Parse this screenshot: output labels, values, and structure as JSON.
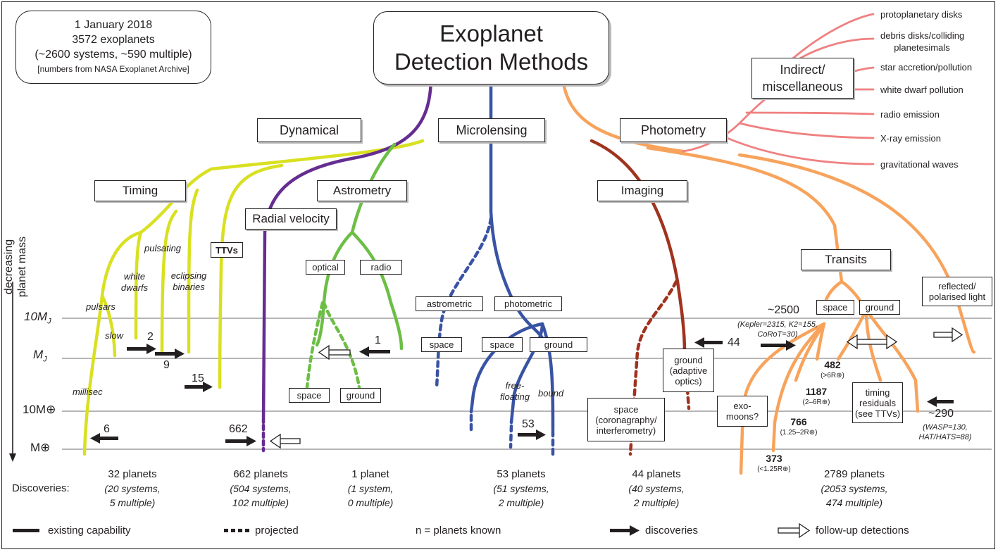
{
  "title": "Exoplanet Detection Methods",
  "info": {
    "line1": "1 January 2018",
    "line2": "3572 exoplanets",
    "line3": "(~2600 systems, ~590 multiple)",
    "line4": "[numbers from NASA Exoplanet Archive]"
  },
  "categories": {
    "dynamical": "Dynamical",
    "microlensing": "Microlensing",
    "photometry": "Photometry",
    "indirect_line1": "Indirect/",
    "indirect_line2": "miscellaneous"
  },
  "methods": {
    "timing": "Timing",
    "astrometry": "Astrometry",
    "radial_velocity": "Radial velocity",
    "imaging": "Imaging",
    "transits": "Transits",
    "ttvs": "TTVs",
    "optical": "optical",
    "radio": "radio",
    "astrometric": "astrometric",
    "photometric": "photometric",
    "space": "space",
    "ground": "ground",
    "reflected_line1": "reflected/",
    "reflected_line2": "polarised light",
    "ground_ao_line1": "ground",
    "ground_ao_line2": "(adaptive",
    "ground_ao_line3": "optics)",
    "space_corona_line1": "space",
    "space_corona_line2": "(coronagraphy/",
    "space_corona_line3": "interferometry)",
    "exomoons_line1": "exo-",
    "exomoons_line2": "moons?",
    "timing_resid_line1": "timing",
    "timing_resid_line2": "residuals",
    "timing_resid_line3": "(see TTVs)"
  },
  "timing_labels": {
    "pulsating": "pulsating",
    "white_line1": "white",
    "white_line2": "dwarfs",
    "eclipsing_line1": "eclipsing",
    "eclipsing_line2": "binaries",
    "pulsars": "pulsars",
    "slow": "slow",
    "millisec": "millisec"
  },
  "micro_labels": {
    "free_line1": "free-",
    "free_line2": "floating",
    "bound": "bound"
  },
  "indirect_items": [
    "protoplanetary disks",
    "debris disks/colliding",
    "planetesimals",
    "star accretion/pollution",
    "white dwarf pollution",
    "radio emission",
    "X-ray emission",
    "gravitational waves"
  ],
  "axis": {
    "label_line1": "decreasing",
    "label_line2": "planet mass",
    "levels": [
      "10M",
      "M",
      "10M⊕",
      "M⊕"
    ],
    "level_subs": [
      "J",
      "J",
      "",
      ""
    ]
  },
  "counts": {
    "c2": "2",
    "c9": "9",
    "c15": "15",
    "c662": "662",
    "c6": "6",
    "c1": "1",
    "c53": "53",
    "c44": "44",
    "c2500": "~2500",
    "c2500_note_line1": "(Kepler=2315, K2=155,",
    "c2500_note_line2": "CoRoT=30)",
    "c290": "~290",
    "c290_note_line1": "(WASP=130,",
    "c290_note_line2": "HAT/HATS=88)",
    "c482": "482",
    "c482_note": "(>6R⊕)",
    "c1187": "1187",
    "c1187_note": "(2–6R⊕)",
    "c766": "766",
    "c766_note": "(1.25–2R⊕)",
    "c373": "373",
    "c373_note": "(<1.25R⊕)"
  },
  "discoveries": {
    "label": "Discoveries:",
    "columns": [
      {
        "planets": "32 planets",
        "line1": "(20 systems,",
        "line2": "5 multiple)"
      },
      {
        "planets": "662 planets",
        "line1": "(504 systems,",
        "line2": "102 multiple)"
      },
      {
        "planets": "1 planet",
        "line1": "(1 system,",
        "line2": "0 multiple)"
      },
      {
        "planets": "53 planets",
        "line1": "(51 systems,",
        "line2": "2 multiple)"
      },
      {
        "planets": "44 planets",
        "line1": "(40 systems,",
        "line2": "2 multiple)"
      },
      {
        "planets": "2789 planets",
        "line1": "(2053 systems,",
        "line2": "474 multiple)"
      }
    ]
  },
  "legend": {
    "existing": "existing capability",
    "projected": "projected",
    "known": "n = planets known",
    "discoveries": "discoveries",
    "followup": "follow-up detections"
  },
  "colors": {
    "dynamical": "#d9e021",
    "radial_velocity": "#662d91",
    "astrometry": "#6cbe45",
    "microlensing": "#3953a4",
    "imaging": "#a0331f",
    "transits": "#f7a35c",
    "indirect": "#f08080",
    "ink": "#231f20"
  }
}
